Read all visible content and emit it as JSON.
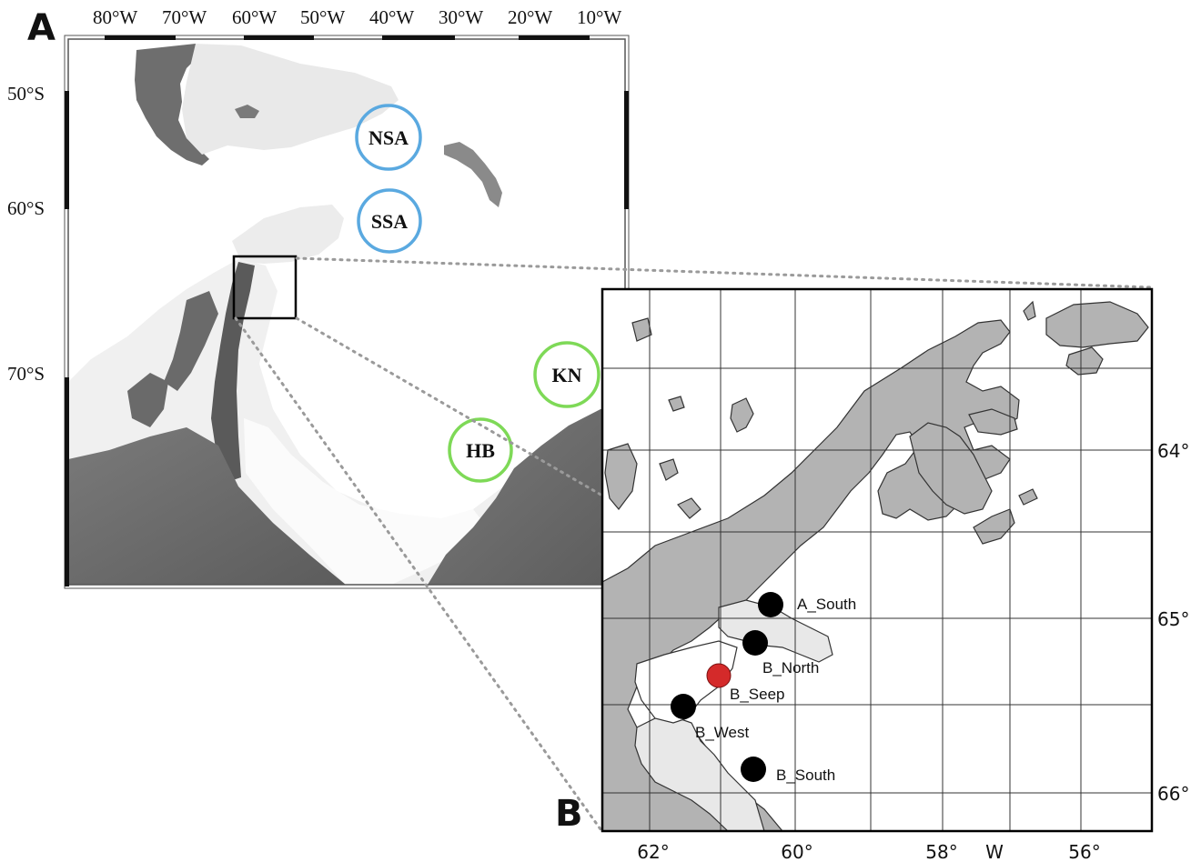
{
  "panels": {
    "a": {
      "letter": "A"
    },
    "b": {
      "letter": "B"
    }
  },
  "map_a": {
    "lon_labels": [
      "80°W",
      "70°W",
      "60°W",
      "50°W",
      "40°W",
      "30°W",
      "20°W",
      "10°W"
    ],
    "lat_labels": [
      "50°S",
      "60°S",
      "70°S"
    ],
    "regions": [
      {
        "label": "NSA",
        "ring_color": "#5aa9e0"
      },
      {
        "label": "SSA",
        "ring_color": "#5aa9e0"
      },
      {
        "label": "KN",
        "ring_color": "#7ed957"
      },
      {
        "label": "HB",
        "ring_color": "#7ed957"
      }
    ]
  },
  "map_b": {
    "lon_labels": [
      "62°",
      "60°",
      "58°",
      "W",
      "56°"
    ],
    "lat_labels": [
      "64°",
      "65°",
      "66°"
    ],
    "sites": [
      {
        "label": "A_South",
        "color": "#000000"
      },
      {
        "label": "B_North",
        "color": "#000000"
      },
      {
        "label": "B_Seep",
        "color": "#d42a2a"
      },
      {
        "label": "B_West",
        "color": "#000000"
      },
      {
        "label": "B_South",
        "color": "#000000"
      }
    ]
  },
  "colors": {
    "land_dark": "#6b6b6b",
    "ice_light": "#efefef",
    "land_b": "#b3b3b3",
    "ice_b": "#e8e8e8"
  }
}
